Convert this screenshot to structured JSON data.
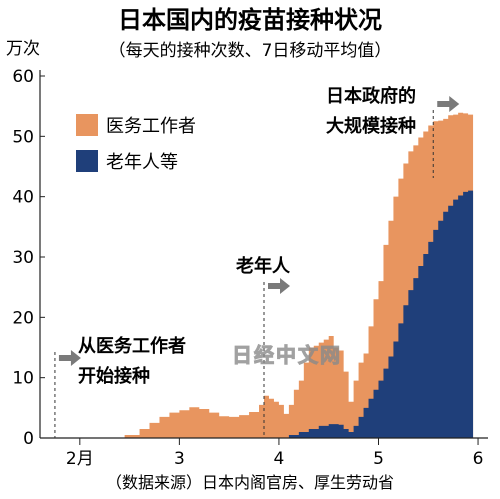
{
  "chart_data": {
    "type": "area",
    "title": "日本国内的疫苗接种状况",
    "subtitle": "（每天的接种次数、7日移动平均值）",
    "ylabel": "万次",
    "xlabel": "",
    "ylim": [
      0,
      60
    ],
    "yticks": [
      0,
      10,
      20,
      30,
      40,
      50,
      60
    ],
    "xlim": [
      1.6,
      6.1
    ],
    "xticks": [
      {
        "value": 2,
        "label": "2月"
      },
      {
        "value": 3,
        "label": "3"
      },
      {
        "value": 4,
        "label": "4"
      },
      {
        "value": 5,
        "label": "5"
      },
      {
        "value": 6,
        "label": "6"
      }
    ],
    "grid": false,
    "legend_position": "top-left",
    "series": [
      {
        "name": "医务工作者",
        "color": "#e8955f",
        "stacked_total": [
          [
            1.6,
            0
          ],
          [
            1.9,
            0
          ],
          [
            2.2,
            0
          ],
          [
            2.45,
            0.5
          ],
          [
            2.6,
            1.5
          ],
          [
            2.7,
            2.5
          ],
          [
            2.8,
            3.5
          ],
          [
            2.9,
            4.2
          ],
          [
            3.0,
            4.6
          ],
          [
            3.1,
            5.1
          ],
          [
            3.2,
            4.8
          ],
          [
            3.3,
            4.2
          ],
          [
            3.4,
            3.6
          ],
          [
            3.5,
            3.5
          ],
          [
            3.6,
            3.8
          ],
          [
            3.7,
            4.3
          ],
          [
            3.8,
            5.5
          ],
          [
            3.85,
            7.0
          ],
          [
            3.9,
            6.5
          ],
          [
            3.95,
            6.0
          ],
          [
            4.0,
            5.5
          ],
          [
            4.05,
            4.0
          ],
          [
            4.1,
            5.5
          ],
          [
            4.15,
            8.0
          ],
          [
            4.2,
            9.5
          ],
          [
            4.25,
            12.5
          ],
          [
            4.3,
            15.0
          ],
          [
            4.35,
            15.3
          ],
          [
            4.4,
            15.8
          ],
          [
            4.45,
            16.3
          ],
          [
            4.5,
            16.9
          ],
          [
            4.55,
            15.0
          ],
          [
            4.6,
            14.5
          ],
          [
            4.65,
            11.0
          ],
          [
            4.7,
            6.0
          ],
          [
            4.75,
            9.5
          ],
          [
            4.8,
            12.5
          ],
          [
            4.85,
            14.0
          ],
          [
            4.9,
            18.5
          ],
          [
            4.95,
            23.0
          ],
          [
            5.0,
            26.0
          ],
          [
            5.05,
            32.0
          ],
          [
            5.1,
            36.0
          ],
          [
            5.15,
            40.0
          ],
          [
            5.2,
            43.0
          ],
          [
            5.25,
            45.5
          ],
          [
            5.3,
            47.5
          ],
          [
            5.35,
            48.5
          ],
          [
            5.4,
            49.8
          ],
          [
            5.45,
            50.8
          ],
          [
            5.5,
            51.8
          ],
          [
            5.55,
            52.5
          ],
          [
            5.6,
            52.6
          ],
          [
            5.65,
            52.9
          ],
          [
            5.7,
            53.5
          ],
          [
            5.75,
            53.6
          ],
          [
            5.8,
            53.9
          ],
          [
            5.85,
            53.8
          ],
          [
            5.9,
            53.6
          ],
          [
            5.95,
            53.1
          ]
        ]
      },
      {
        "name": "老年人等",
        "color": "#1f3f7a",
        "values": [
          [
            1.6,
            0
          ],
          [
            4.0,
            0
          ],
          [
            4.1,
            0.5
          ],
          [
            4.2,
            1.0
          ],
          [
            4.3,
            1.5
          ],
          [
            4.4,
            2.0
          ],
          [
            4.5,
            2.3
          ],
          [
            4.6,
            2.2
          ],
          [
            4.65,
            1.5
          ],
          [
            4.7,
            1.0
          ],
          [
            4.75,
            2.0
          ],
          [
            4.8,
            3.5
          ],
          [
            4.85,
            5.0
          ],
          [
            4.9,
            6.5
          ],
          [
            4.95,
            8.0
          ],
          [
            5.0,
            9.5
          ],
          [
            5.05,
            11.5
          ],
          [
            5.1,
            13.5
          ],
          [
            5.15,
            16.0
          ],
          [
            5.2,
            19.0
          ],
          [
            5.25,
            22.0
          ],
          [
            5.3,
            24.5
          ],
          [
            5.35,
            26.5
          ],
          [
            5.4,
            28.5
          ],
          [
            5.45,
            30.5
          ],
          [
            5.5,
            32.5
          ],
          [
            5.55,
            34.5
          ],
          [
            5.6,
            36.0
          ],
          [
            5.65,
            37.5
          ],
          [
            5.7,
            38.5
          ],
          [
            5.75,
            39.5
          ],
          [
            5.8,
            40.2
          ],
          [
            5.85,
            40.8
          ],
          [
            5.9,
            41.0
          ],
          [
            5.95,
            40.6
          ]
        ]
      }
    ],
    "annotations": [
      {
        "lines": [
          "从医务工作者",
          "开始接种"
        ],
        "x": 1.75
      },
      {
        "lines": [
          "老年人"
        ],
        "x": 3.85
      },
      {
        "lines": [
          "日本政府的",
          "大规模接种"
        ],
        "x": 5.55
      }
    ],
    "source": "（数据来源）日本内阁官房、厚生劳动省",
    "watermark": "日经中文网"
  }
}
